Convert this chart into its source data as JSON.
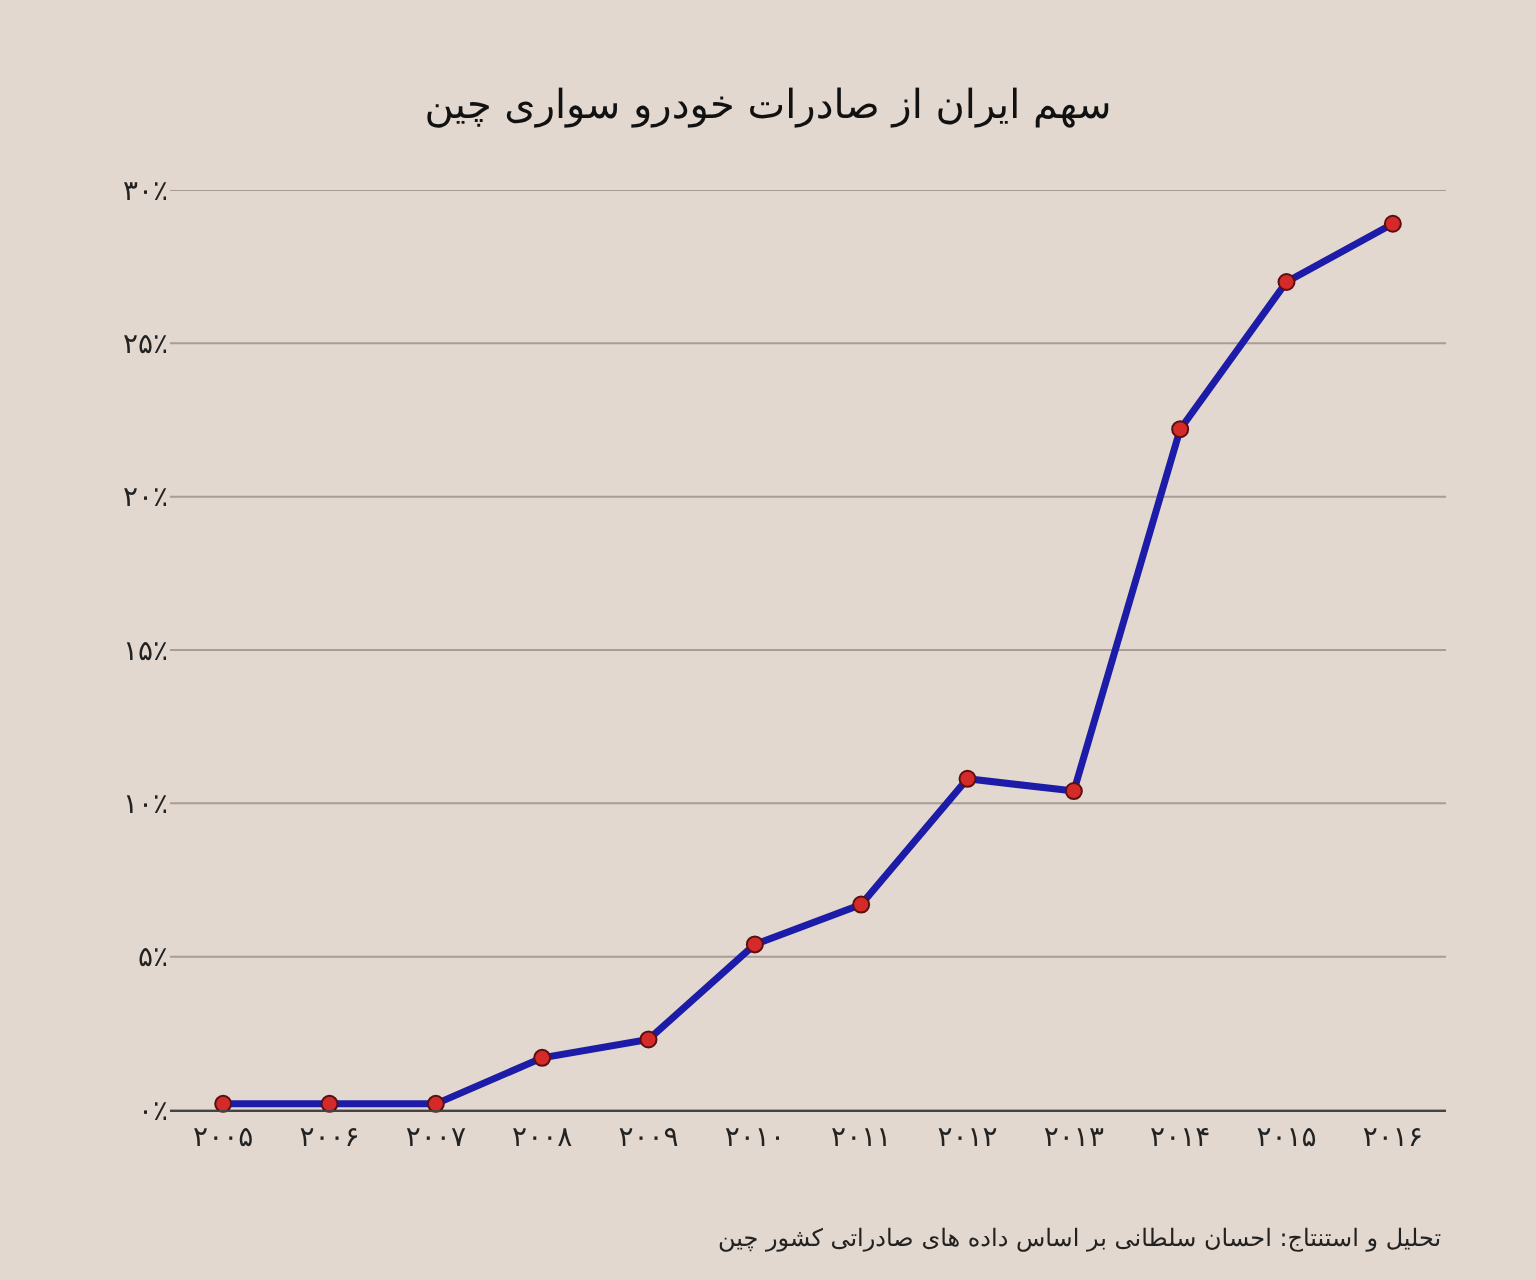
{
  "chart_data": {
    "type": "line",
    "title": "سهم ایران از صادرات خودرو سواری چین",
    "categories": [
      "۲۰۰۵",
      "۲۰۰۶",
      "۲۰۰۷",
      "۲۰۰۸",
      "۲۰۰۹",
      "۲۰۱۰",
      "۲۰۱۱",
      "۲۰۱۲",
      "۲۰۱۳",
      "۲۰۱۴",
      "۲۰۱۵",
      "۲۰۱۶"
    ],
    "series": [
      {
        "color": "#1c1ca8",
        "colors": [
          "#d42a2a",
          "#d42a2a",
          "#d42a2a",
          "#d42a2a",
          "#d42a2a",
          "#d42a2a",
          "#d42a2a",
          "#d42a2a",
          "#d42a2a",
          "#d42a2a",
          "#d42a2a",
          "#d42a2a"
        ],
        "values": [
          0.2,
          0.2,
          0.2,
          1.7,
          2.3,
          5.4,
          6.7,
          10.8,
          10.4,
          22.2,
          27.0,
          28.9
        ]
      }
    ],
    "ylim": [
      0,
      30
    ],
    "yticks": [
      {
        "value": 0,
        "label": "۰٪"
      },
      {
        "value": 5,
        "label": "۵٪"
      },
      {
        "value": 10,
        "label": "۱۰٪"
      },
      {
        "value": 15,
        "label": "۱۵٪"
      },
      {
        "value": 20,
        "label": "۲۰٪"
      },
      {
        "value": 25,
        "label": "۲۵٪"
      },
      {
        "value": 30,
        "label": "۳۰٪"
      }
    ],
    "grid": "y",
    "marker": "circle",
    "line_style": "solid",
    "annotations": [
      "تحلیل و استنتاج: احسان سلطانی بر اساس داده های صادراتی کشور چین"
    ]
  }
}
